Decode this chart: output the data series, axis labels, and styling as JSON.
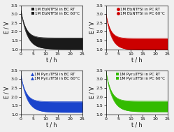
{
  "panels": [
    {
      "label_rt": "1M Et₄NTFSI in BC RT",
      "label_60": "1M Et₄NTFSI in BC 60°C",
      "color": "#1a1a1a",
      "marker_rt": "s",
      "marker_60": "s",
      "curve_rt_start": 3.2,
      "curve_rt_end": 1.65,
      "curve_60_start": 3.2,
      "curve_60_end": 1.02,
      "tau_rt": 2.0,
      "tau_60": 2.5
    },
    {
      "label_rt": "1M Et₄NTFSI in PC RT",
      "label_60": "1M Et₄NTFSI in PC 60°C",
      "color": "#cc0000",
      "marker_rt": "o",
      "marker_60": "o",
      "curve_rt_start": 3.0,
      "curve_rt_end": 1.62,
      "curve_60_start": 3.0,
      "curve_60_end": 0.98,
      "tau_rt": 1.8,
      "tau_60": 2.2
    },
    {
      "label_rt": "1M Pyr₁₄TFSI in BC RT",
      "label_60": "1M Pyr₁₄TFSI in BC 60°C",
      "color": "#1a44cc",
      "marker_rt": "^",
      "marker_60": "^",
      "curve_rt_start": 3.2,
      "curve_rt_end": 1.72,
      "curve_60_start": 3.2,
      "curve_60_end": 1.12,
      "tau_rt": 2.0,
      "tau_60": 2.5
    },
    {
      "label_rt": "1M Pyr₁₄TFSI in PC RT",
      "label_60": "1M Pyr₁₄TFSI in PC 60°C",
      "color": "#33bb00",
      "marker_rt": "s",
      "marker_60": "s",
      "curve_rt_start": 3.45,
      "curve_rt_end": 1.75,
      "curve_60_start": 3.45,
      "curve_60_end": 1.15,
      "tau_rt": 2.0,
      "tau_60": 2.5
    }
  ],
  "xlim": [
    0,
    25
  ],
  "ylim": [
    1.0,
    3.5
  ],
  "yticks": [
    1.0,
    1.5,
    2.0,
    2.5,
    3.0,
    3.5
  ],
  "xticks": [
    0,
    5,
    10,
    15,
    20,
    25
  ],
  "xlabel": "t / h",
  "ylabel": "E / V",
  "figsize": [
    2.49,
    1.89
  ],
  "dpi": 100,
  "legend_fontsize": 4.0,
  "axis_fontsize": 5.5,
  "tick_fontsize": 4.5,
  "bg_color": "#f0f0f0"
}
